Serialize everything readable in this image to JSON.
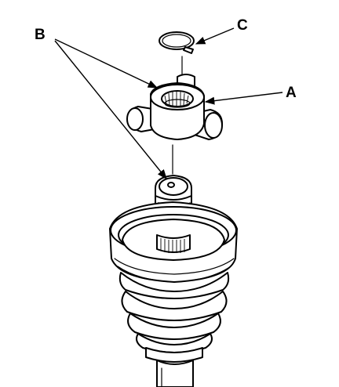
{
  "callouts": {
    "a": "A",
    "b": "B",
    "c": "C"
  },
  "colors": {
    "ink": "#000000",
    "paper": "#ffffff"
  }
}
